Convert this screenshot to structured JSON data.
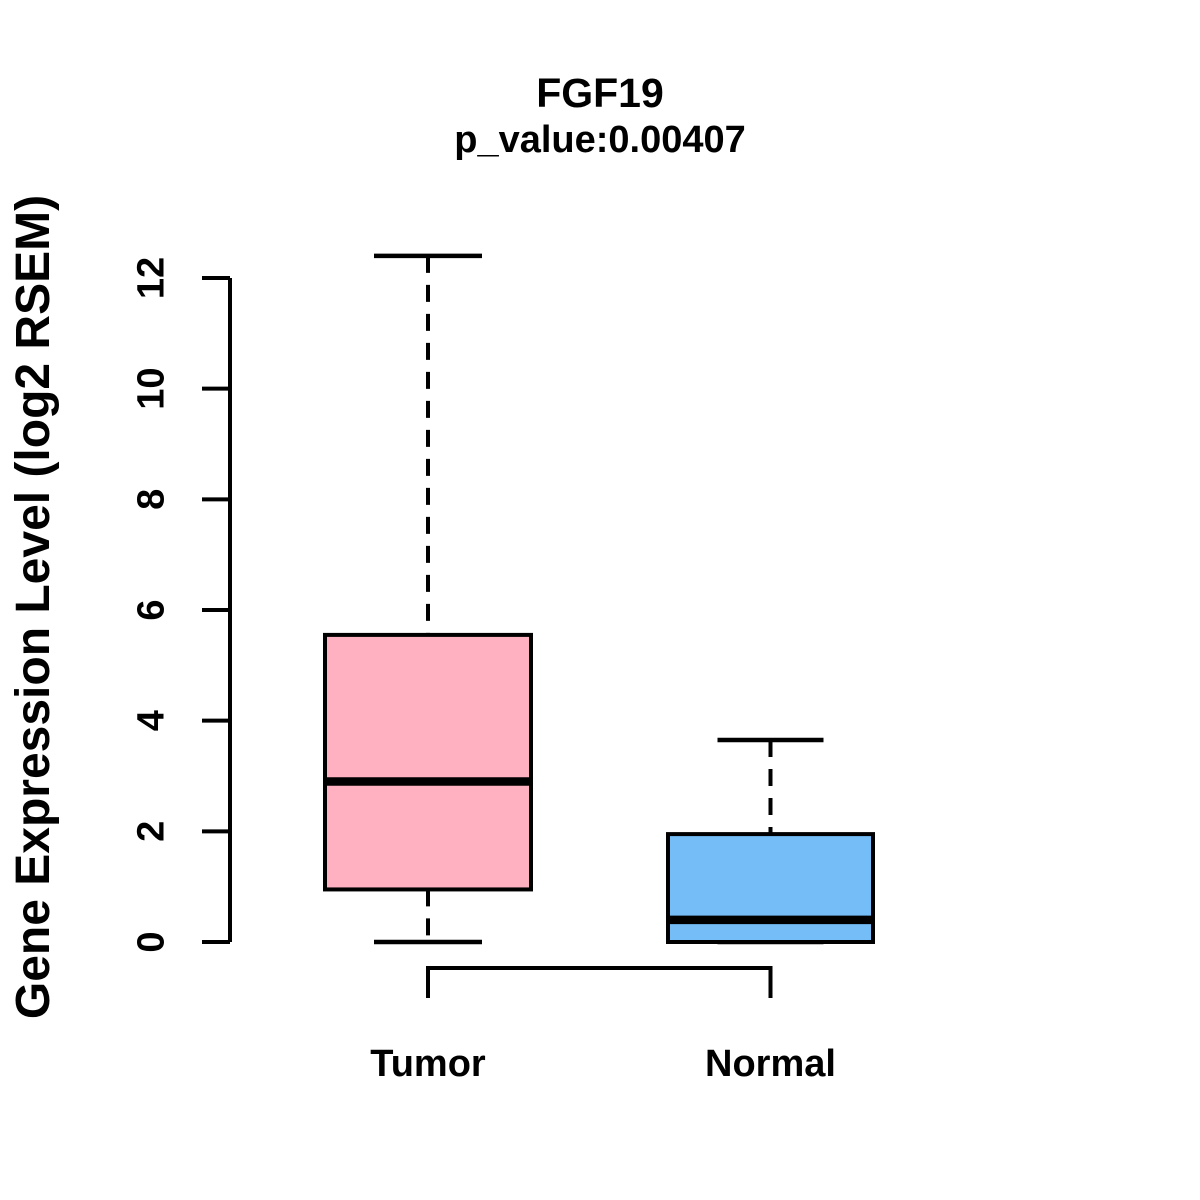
{
  "title": "FGF19",
  "subtitle": "p_value:0.00407",
  "ylabel": "Gene Expression Level (log2 RSEM)",
  "chart_data": {
    "type": "boxplot",
    "title": "FGF19",
    "subtitle": "p_value:0.00407",
    "ylabel": "Gene Expression Level (log2 RSEM)",
    "xlabel": "",
    "categories": [
      "Tumor",
      "Normal"
    ],
    "yticks": [
      "0",
      "2",
      "4",
      "6",
      "8",
      "10",
      "12"
    ],
    "ylim": [
      0,
      12.4
    ],
    "grid": false,
    "series": [
      {
        "name": "Tumor",
        "fill_color": "#FFB1C1",
        "whisker_low": 0.0,
        "q1": 0.95,
        "median": 2.9,
        "q3": 5.55,
        "whisker_high": 12.4
      },
      {
        "name": "Normal",
        "fill_color": "#74BDF7",
        "whisker_low": 0.0,
        "q1": 0.0,
        "median": 0.4,
        "q3": 1.95,
        "whisker_high": 3.65
      }
    ],
    "comparison_bracket": {
      "between": [
        "Tumor",
        "Normal"
      ]
    }
  },
  "colors": {
    "line": "#000000",
    "background": "#FFFFFF",
    "tumor_fill": "#FFB1C1",
    "normal_fill": "#74BDF7"
  }
}
